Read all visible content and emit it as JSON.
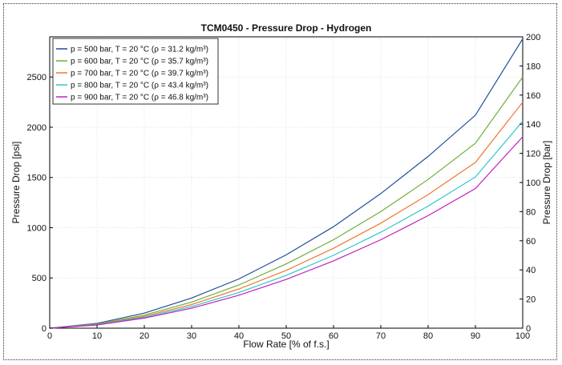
{
  "chart_data": {
    "type": "line",
    "title": "TCM0450 - Pressure Drop - Hydrogen",
    "xlabel": "Flow Rate [% of f.s.]",
    "ylabel_left": "Pressure Drop [psi]",
    "ylabel_right": "Pressure Drop [bar]",
    "xlim": [
      0,
      100
    ],
    "ylim_left": [
      0,
      2900
    ],
    "ylim_right": [
      0,
      200
    ],
    "x_ticks": [
      0,
      10,
      20,
      30,
      40,
      50,
      60,
      70,
      80,
      90,
      100
    ],
    "y_left_ticks": [
      0,
      500,
      1000,
      1500,
      2000,
      2500
    ],
    "y_right_ticks": [
      0,
      20,
      40,
      60,
      80,
      100,
      120,
      140,
      160,
      180,
      200
    ],
    "grid": true,
    "legend_position": "top-left",
    "x": [
      0,
      10,
      20,
      30,
      40,
      50,
      60,
      70,
      80,
      90,
      100
    ],
    "series": [
      {
        "name": "p = 500 bar, T = 20 °C (ρ = 31.2 kg/m³)",
        "color": "#1f4e9c",
        "values": [
          0,
          48,
          150,
          300,
          490,
          730,
          1010,
          1340,
          1710,
          2120,
          2880
        ]
      },
      {
        "name": "p = 600 bar, T = 20 °C (ρ = 35.7 kg/m³)",
        "color": "#6fae3a",
        "values": [
          0,
          42,
          130,
          260,
          430,
          640,
          880,
          1160,
          1480,
          1840,
          2500
        ]
      },
      {
        "name": "p = 700 bar, T = 20 °C (ρ = 39.7 kg/m³)",
        "color": "#f07830",
        "values": [
          0,
          38,
          118,
          235,
          390,
          575,
          795,
          1045,
          1330,
          1650,
          2250
        ]
      },
      {
        "name": "p = 800 bar, T = 20 °C (ρ = 43.4 kg/m³)",
        "color": "#2ec6cc",
        "values": [
          0,
          35,
          108,
          215,
          355,
          525,
          725,
          955,
          1215,
          1505,
          2060
        ]
      },
      {
        "name": "p = 900 bar, T = 20 °C (ρ = 46.8 kg/m³)",
        "color": "#c020c0",
        "values": [
          0,
          32,
          100,
          198,
          328,
          485,
          670,
          880,
          1120,
          1390,
          1905
        ]
      }
    ]
  }
}
